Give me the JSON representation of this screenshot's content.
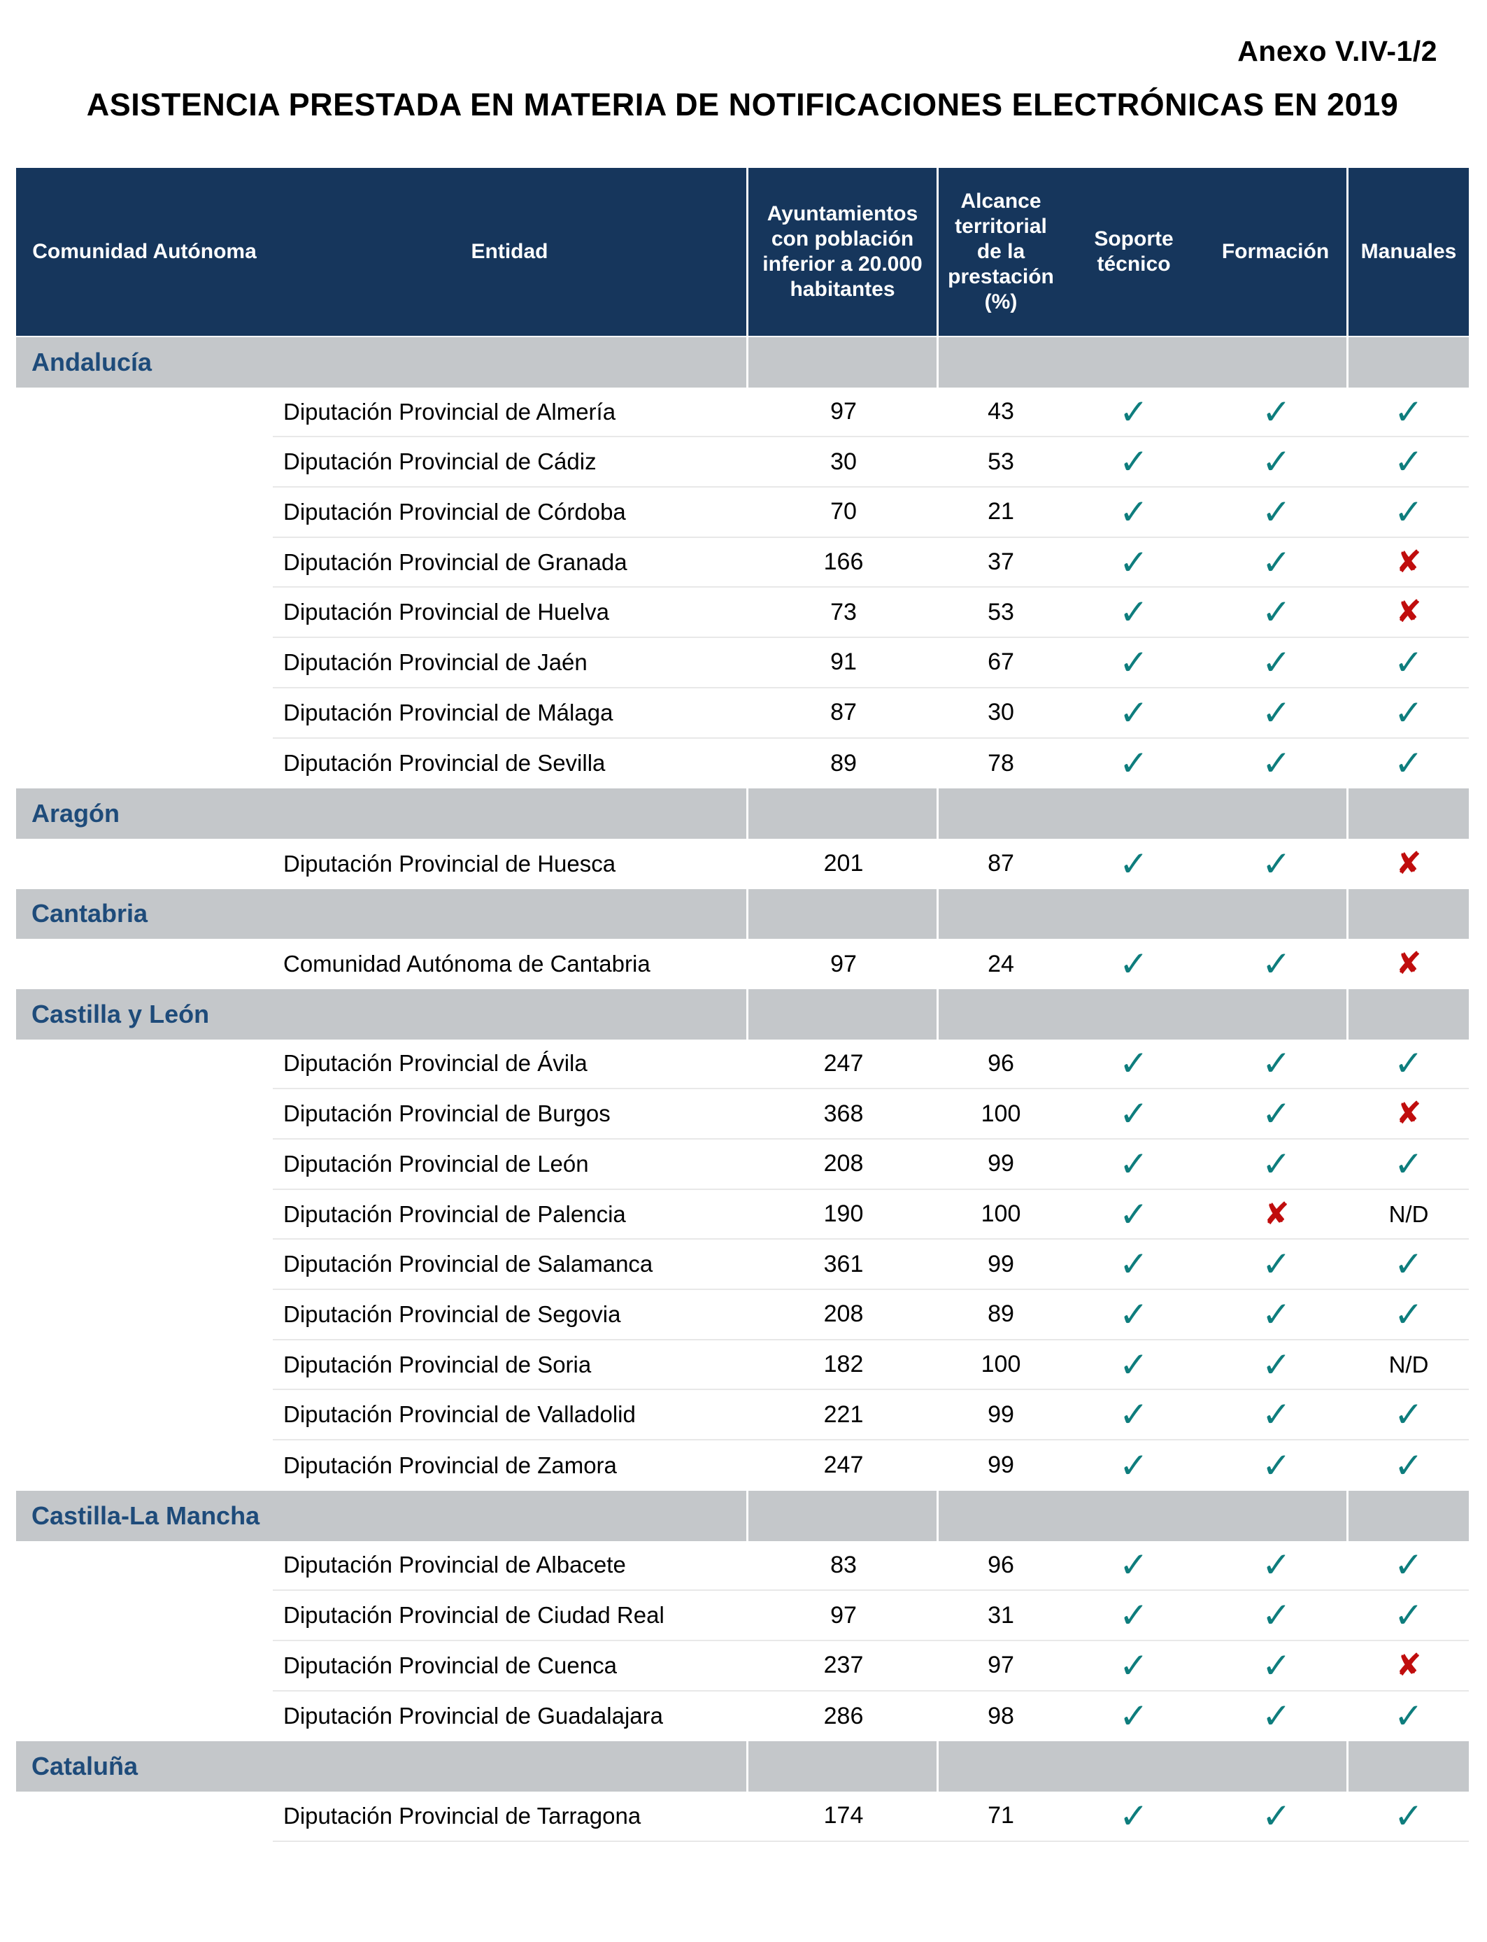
{
  "page": {
    "annex": "Anexo V.IV-1/2",
    "title": "ASISTENCIA PRESTADA EN MATERIA DE NOTIFICACIONES ELECTRÓNICAS EN 2019"
  },
  "table": {
    "columns": [
      "Comunidad Autónoma",
      "Entidad",
      "Ayuntamientos con población inferior a 20.000 habitantes",
      "Alcance territorial de la prestación (%)",
      "Soporte técnico",
      "Formación",
      "Manuales"
    ],
    "marks": {
      "check": "✓",
      "cross": "✘",
      "nd": "N/D"
    },
    "colors": {
      "header_bg": "#16365C",
      "group_row_bg": "#C4C7CA",
      "group_text": "#1E4B7A",
      "check": "#0E7D7D",
      "cross": "#C00D0D"
    },
    "groups": [
      {
        "region": "Andalucía",
        "entities": [
          {
            "entity": "Diputación Provincial de Almería",
            "ayuntamientos": "97",
            "alcance": "43",
            "soporte": "check",
            "formacion": "check",
            "manuales": "check"
          },
          {
            "entity": "Diputación Provincial de Cádiz",
            "ayuntamientos": "30",
            "alcance": "53",
            "soporte": "check",
            "formacion": "check",
            "manuales": "check"
          },
          {
            "entity": "Diputación Provincial de Córdoba",
            "ayuntamientos": "70",
            "alcance": "21",
            "soporte": "check",
            "formacion": "check",
            "manuales": "check"
          },
          {
            "entity": "Diputación Provincial de Granada",
            "ayuntamientos": "166",
            "alcance": "37",
            "soporte": "check",
            "formacion": "check",
            "manuales": "cross"
          },
          {
            "entity": "Diputación Provincial de Huelva",
            "ayuntamientos": "73",
            "alcance": "53",
            "soporte": "check",
            "formacion": "check",
            "manuales": "cross"
          },
          {
            "entity": "Diputación Provincial de Jaén",
            "ayuntamientos": "91",
            "alcance": "67",
            "soporte": "check",
            "formacion": "check",
            "manuales": "check"
          },
          {
            "entity": "Diputación Provincial de Málaga",
            "ayuntamientos": "87",
            "alcance": "30",
            "soporte": "check",
            "formacion": "check",
            "manuales": "check"
          },
          {
            "entity": "Diputación Provincial de Sevilla",
            "ayuntamientos": "89",
            "alcance": "78",
            "soporte": "check",
            "formacion": "check",
            "manuales": "check"
          }
        ]
      },
      {
        "region": "Aragón",
        "entities": [
          {
            "entity": "Diputación Provincial de Huesca",
            "ayuntamientos": "201",
            "alcance": "87",
            "soporte": "check",
            "formacion": "check",
            "manuales": "cross"
          }
        ]
      },
      {
        "region": "Cantabria",
        "entities": [
          {
            "entity": "Comunidad Autónoma de Cantabria",
            "ayuntamientos": "97",
            "alcance": "24",
            "soporte": "check",
            "formacion": "check",
            "manuales": "cross"
          }
        ]
      },
      {
        "region": "Castilla y León",
        "entities": [
          {
            "entity": "Diputación Provincial de Ávila",
            "ayuntamientos": "247",
            "alcance": "96",
            "soporte": "check",
            "formacion": "check",
            "manuales": "check"
          },
          {
            "entity": "Diputación Provincial de Burgos",
            "ayuntamientos": "368",
            "alcance": "100",
            "soporte": "check",
            "formacion": "check",
            "manuales": "cross"
          },
          {
            "entity": "Diputación Provincial de León",
            "ayuntamientos": "208",
            "alcance": "99",
            "soporte": "check",
            "formacion": "check",
            "manuales": "check"
          },
          {
            "entity": "Diputación Provincial de Palencia",
            "ayuntamientos": "190",
            "alcance": "100",
            "soporte": "check",
            "formacion": "cross",
            "manuales": "nd"
          },
          {
            "entity": "Diputación Provincial de Salamanca",
            "ayuntamientos": "361",
            "alcance": "99",
            "soporte": "check",
            "formacion": "check",
            "manuales": "check"
          },
          {
            "entity": "Diputación Provincial de Segovia",
            "ayuntamientos": "208",
            "alcance": "89",
            "soporte": "check",
            "formacion": "check",
            "manuales": "check"
          },
          {
            "entity": "Diputación Provincial de Soria",
            "ayuntamientos": "182",
            "alcance": "100",
            "soporte": "check",
            "formacion": "check",
            "manuales": "nd"
          },
          {
            "entity": "Diputación Provincial de Valladolid",
            "ayuntamientos": "221",
            "alcance": "99",
            "soporte": "check",
            "formacion": "check",
            "manuales": "check"
          },
          {
            "entity": "Diputación Provincial de Zamora",
            "ayuntamientos": "247",
            "alcance": "99",
            "soporte": "check",
            "formacion": "check",
            "manuales": "check"
          }
        ]
      },
      {
        "region": "Castilla-La Mancha",
        "entities": [
          {
            "entity": "Diputación Provincial de Albacete",
            "ayuntamientos": "83",
            "alcance": "96",
            "soporte": "check",
            "formacion": "check",
            "manuales": "check"
          },
          {
            "entity": "Diputación Provincial de Ciudad Real",
            "ayuntamientos": "97",
            "alcance": "31",
            "soporte": "check",
            "formacion": "check",
            "manuales": "check"
          },
          {
            "entity": "Diputación Provincial de Cuenca",
            "ayuntamientos": "237",
            "alcance": "97",
            "soporte": "check",
            "formacion": "check",
            "manuales": "cross"
          },
          {
            "entity": "Diputación Provincial de Guadalajara",
            "ayuntamientos": "286",
            "alcance": "98",
            "soporte": "check",
            "formacion": "check",
            "manuales": "check"
          }
        ]
      },
      {
        "region": "Cataluña",
        "entities": [
          {
            "entity": "Diputación Provincial de Tarragona",
            "ayuntamientos": "174",
            "alcance": "71",
            "soporte": "check",
            "formacion": "check",
            "manuales": "check"
          }
        ]
      }
    ]
  }
}
